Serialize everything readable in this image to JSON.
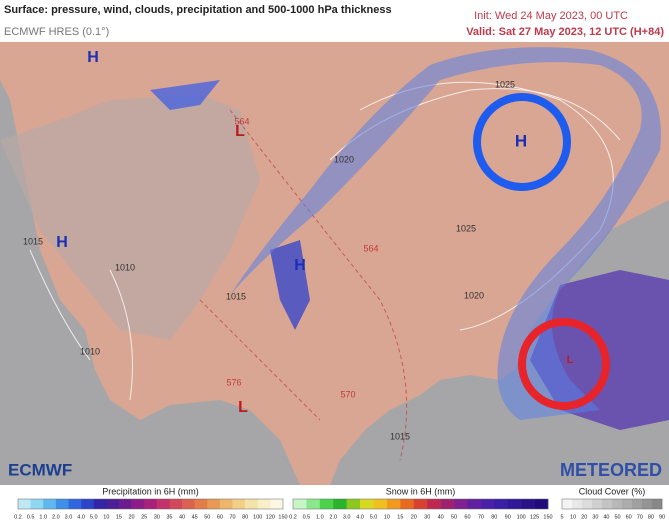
{
  "header": {
    "title": "Surface: pressure, wind, clouds, precipitation and 500-1000 hPa thickness",
    "model": "ECMWF HRES (0.1°)",
    "init": "Init: Wed 24 May 2023, 00 UTC",
    "valid": "Valid: Sat 27 May 2023, 12 UTC (H+84)"
  },
  "map": {
    "labels": [
      "H",
      "H",
      "H",
      "H",
      "L",
      "L",
      "L",
      "1025",
      "1025",
      "1020",
      "1020",
      "1015",
      "1015",
      "1015",
      "1010",
      "1010",
      "564",
      "564",
      "570",
      "576"
    ]
  },
  "logos": {
    "left": "ECMWF",
    "right": "METEORED"
  },
  "legends": [
    {
      "title": "Precipitation in 6H (mm)",
      "ticks": [
        "0.2",
        "0.5",
        "1.0",
        "2.0",
        "3.0",
        "4.0",
        "5.0",
        "10",
        "15",
        "20",
        "25",
        "30",
        "35",
        "40",
        "45",
        "50",
        "60",
        "70",
        "80",
        "100",
        "120",
        "150"
      ]
    },
    {
      "title": "Snow in 6H (mm)",
      "ticks": [
        "0.2",
        "0.5",
        "1.0",
        "2.0",
        "3.0",
        "4.0",
        "5.0",
        "10",
        "15",
        "20",
        "30",
        "40",
        "50",
        "60",
        "70",
        "80",
        "90",
        "100",
        "125",
        "150"
      ]
    },
    {
      "title": "Cloud Cover (%)",
      "ticks": [
        "5",
        "10",
        "20",
        "30",
        "40",
        "50",
        "60",
        "70",
        "80",
        "90"
      ]
    }
  ]
}
